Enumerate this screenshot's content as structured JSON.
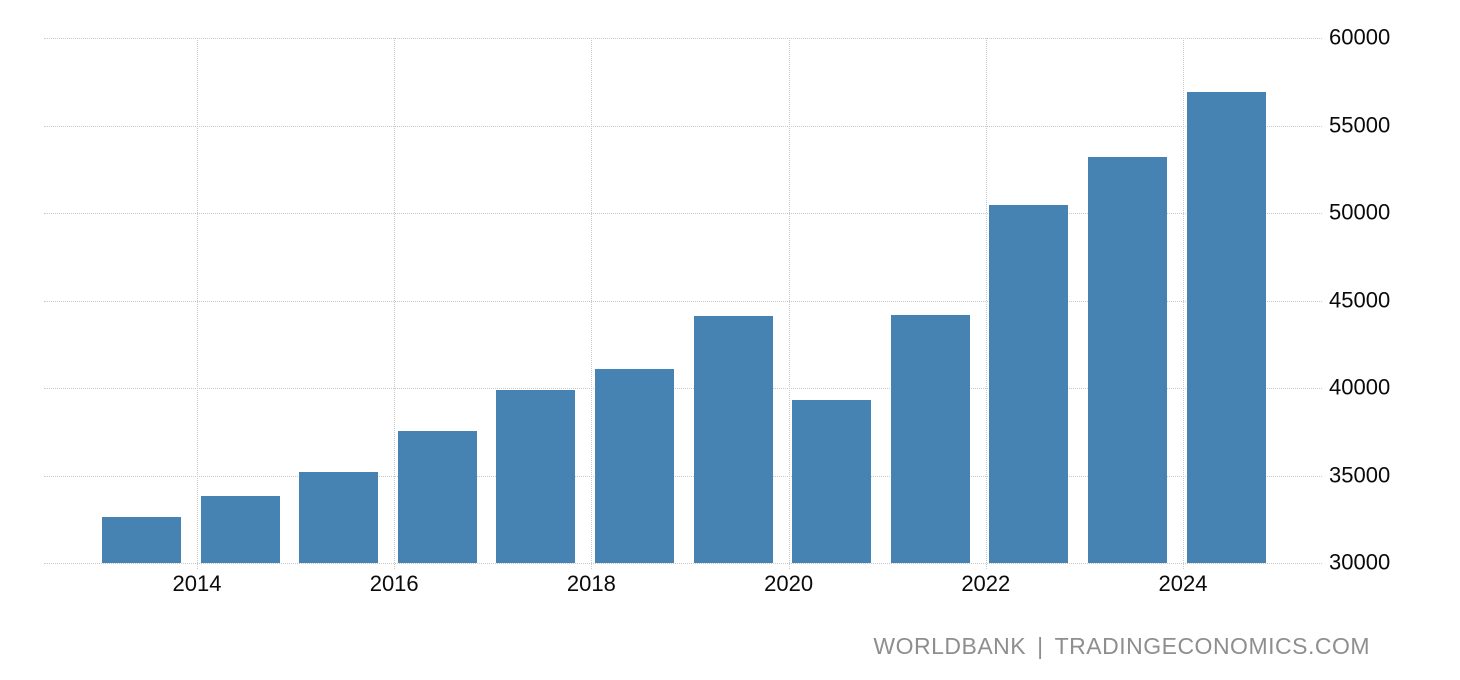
{
  "chart_data": {
    "type": "bar",
    "categories": [
      2013,
      2014,
      2015,
      2016,
      2017,
      2018,
      2019,
      2020,
      2021,
      2022,
      2023,
      2024
    ],
    "values": [
      32650,
      33850,
      35200,
      37550,
      39900,
      41100,
      44100,
      39300,
      44200,
      50450,
      53200,
      56900
    ],
    "yticks": [
      60000,
      55000,
      50000,
      45000,
      40000,
      35000,
      30000
    ],
    "xticks": [
      2014,
      2016,
      2018,
      2020,
      2022,
      2024
    ],
    "ylim": [
      30000,
      60000
    ],
    "grid": "dotted",
    "legend_position": "none",
    "y_axis_side": "right",
    "bar_color": "#4682b2"
  },
  "watermark": {
    "source": "WORLDBANK",
    "separator": "|",
    "site": "TRADINGECONOMICS.COM"
  },
  "colors": {
    "background": "#ffffff",
    "bar": "#4682b2",
    "gridline": "#c9c9c9",
    "axis_text": "#0a0a0a",
    "watermark_text": "#8e8e8e"
  }
}
